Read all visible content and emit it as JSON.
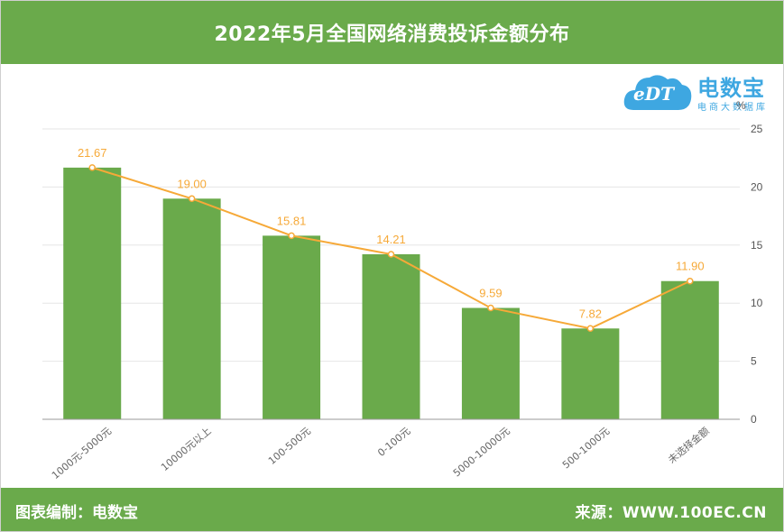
{
  "header": {
    "title": "2022年5月全国网络消费投诉金额分布"
  },
  "logo": {
    "name": "电数宝",
    "subtitle": "电商大数据库",
    "mark_text": "eDT"
  },
  "footer": {
    "left_text": "图表编制：电数宝",
    "right_text": "来源：WWW.100EC.CN"
  },
  "chart_data": {
    "type": "bar",
    "categories": [
      "1000元-5000元",
      "10000元以上",
      "100-500元",
      "0-100元",
      "5000-10000元",
      "500-1000元",
      "未选择金额"
    ],
    "values": [
      21.67,
      19.0,
      15.81,
      14.21,
      9.59,
      7.82,
      11.9
    ],
    "data_labels": [
      "21.67",
      "19.00",
      "15.81",
      "14.21",
      "9.59",
      "7.82",
      "11.90"
    ],
    "line_overlay": true,
    "unit_label": "%",
    "y_axis_position": "right",
    "ylim": [
      0,
      25
    ],
    "yticks": [
      0,
      5,
      10,
      15,
      20,
      25
    ],
    "grid": true,
    "colors": {
      "bar": "#6aaa4b",
      "line": "#f6a938",
      "label": "#f6a938",
      "grid": "#e6e6e6",
      "axis": "#999999"
    }
  }
}
